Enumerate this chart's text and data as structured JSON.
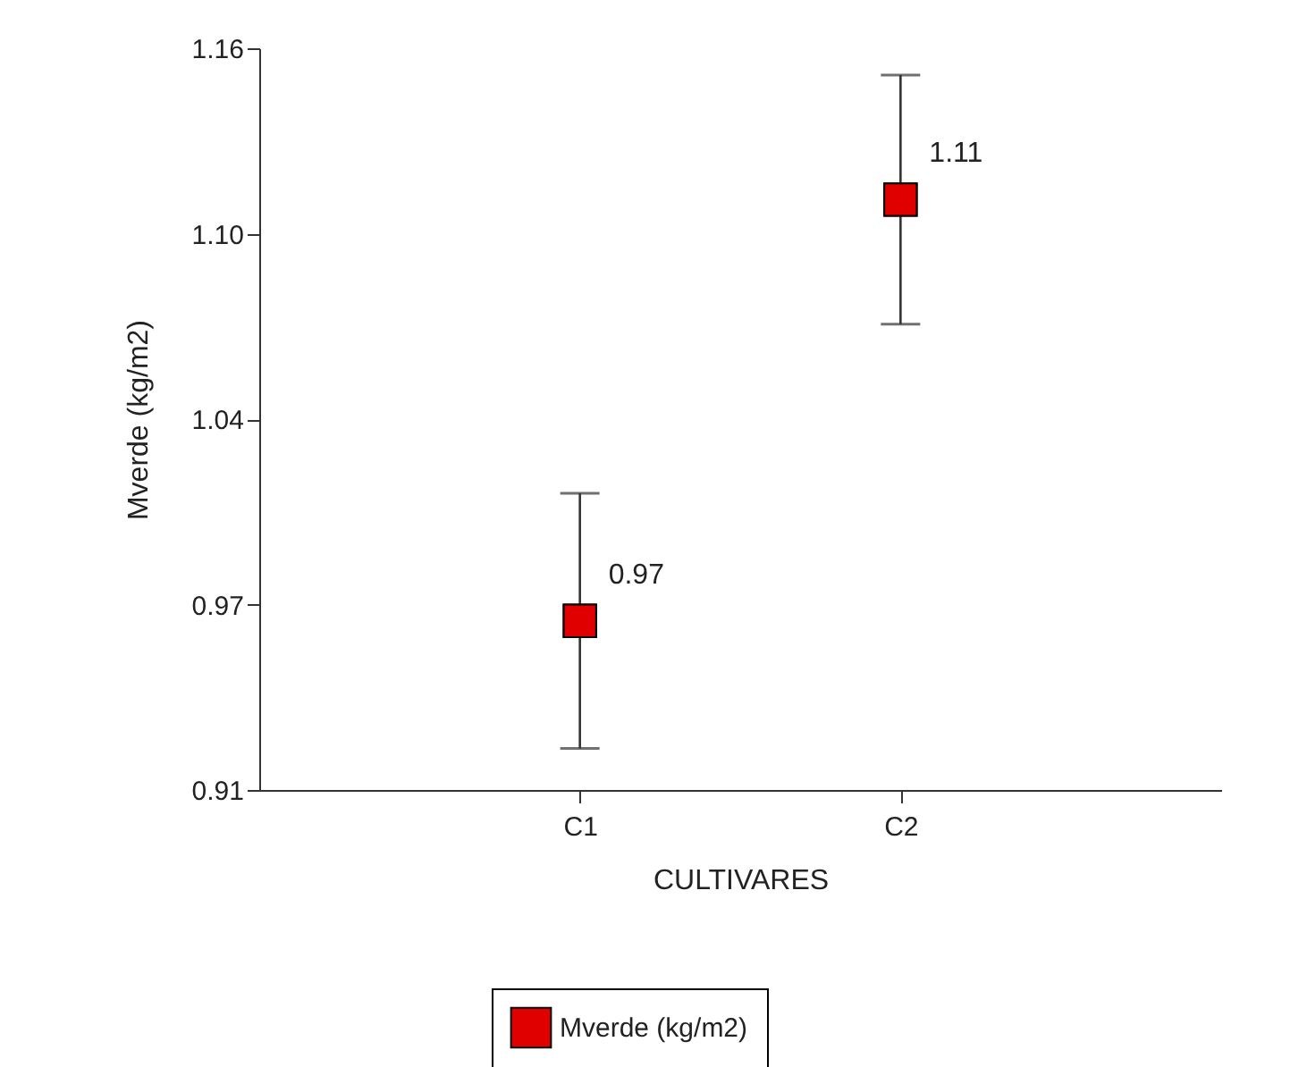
{
  "chart_data": {
    "type": "scatter",
    "xlabel": "CULTIVARES",
    "ylabel": "Mverde (kg/m2)",
    "categories": [
      "C1",
      "C2"
    ],
    "series": [
      {
        "name": "Mverde (kg/m2)",
        "color": "#e00000",
        "values": [
          0.967,
          1.109
        ],
        "errors": [
          0.043,
          0.042
        ],
        "value_labels": [
          "0.97",
          "1.11"
        ]
      }
    ],
    "ylim": [
      0.91,
      1.16
    ],
    "yticks": [
      {
        "value": 0.91,
        "label": "0.91"
      },
      {
        "value": 0.9725,
        "label": "0.97"
      },
      {
        "value": 1.035,
        "label": "1.04"
      },
      {
        "value": 1.0975,
        "label": "1.10"
      },
      {
        "value": 1.16,
        "label": "1.16"
      }
    ],
    "grid": false,
    "legend": "bottom",
    "marker": "square"
  }
}
